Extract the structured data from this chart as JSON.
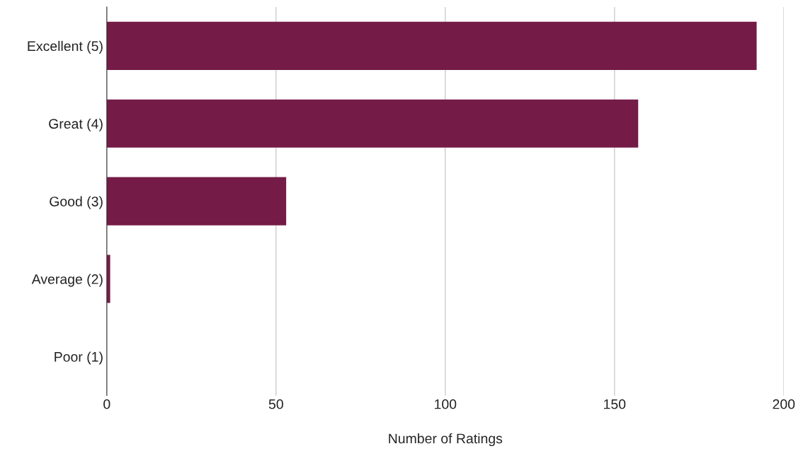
{
  "chart_data": {
    "type": "bar",
    "orientation": "horizontal",
    "xlabel": "Number of Ratings",
    "categories": [
      "Excellent (5)",
      "Great (4)",
      "Good (3)",
      "Average (2)",
      "Poor (1)"
    ],
    "values": [
      192,
      157,
      53,
      1,
      0
    ],
    "color": "#741b47",
    "xlim": [
      0,
      200
    ],
    "xticks": [
      0,
      50,
      100,
      150,
      200
    ],
    "grid": "x",
    "legend": false
  }
}
